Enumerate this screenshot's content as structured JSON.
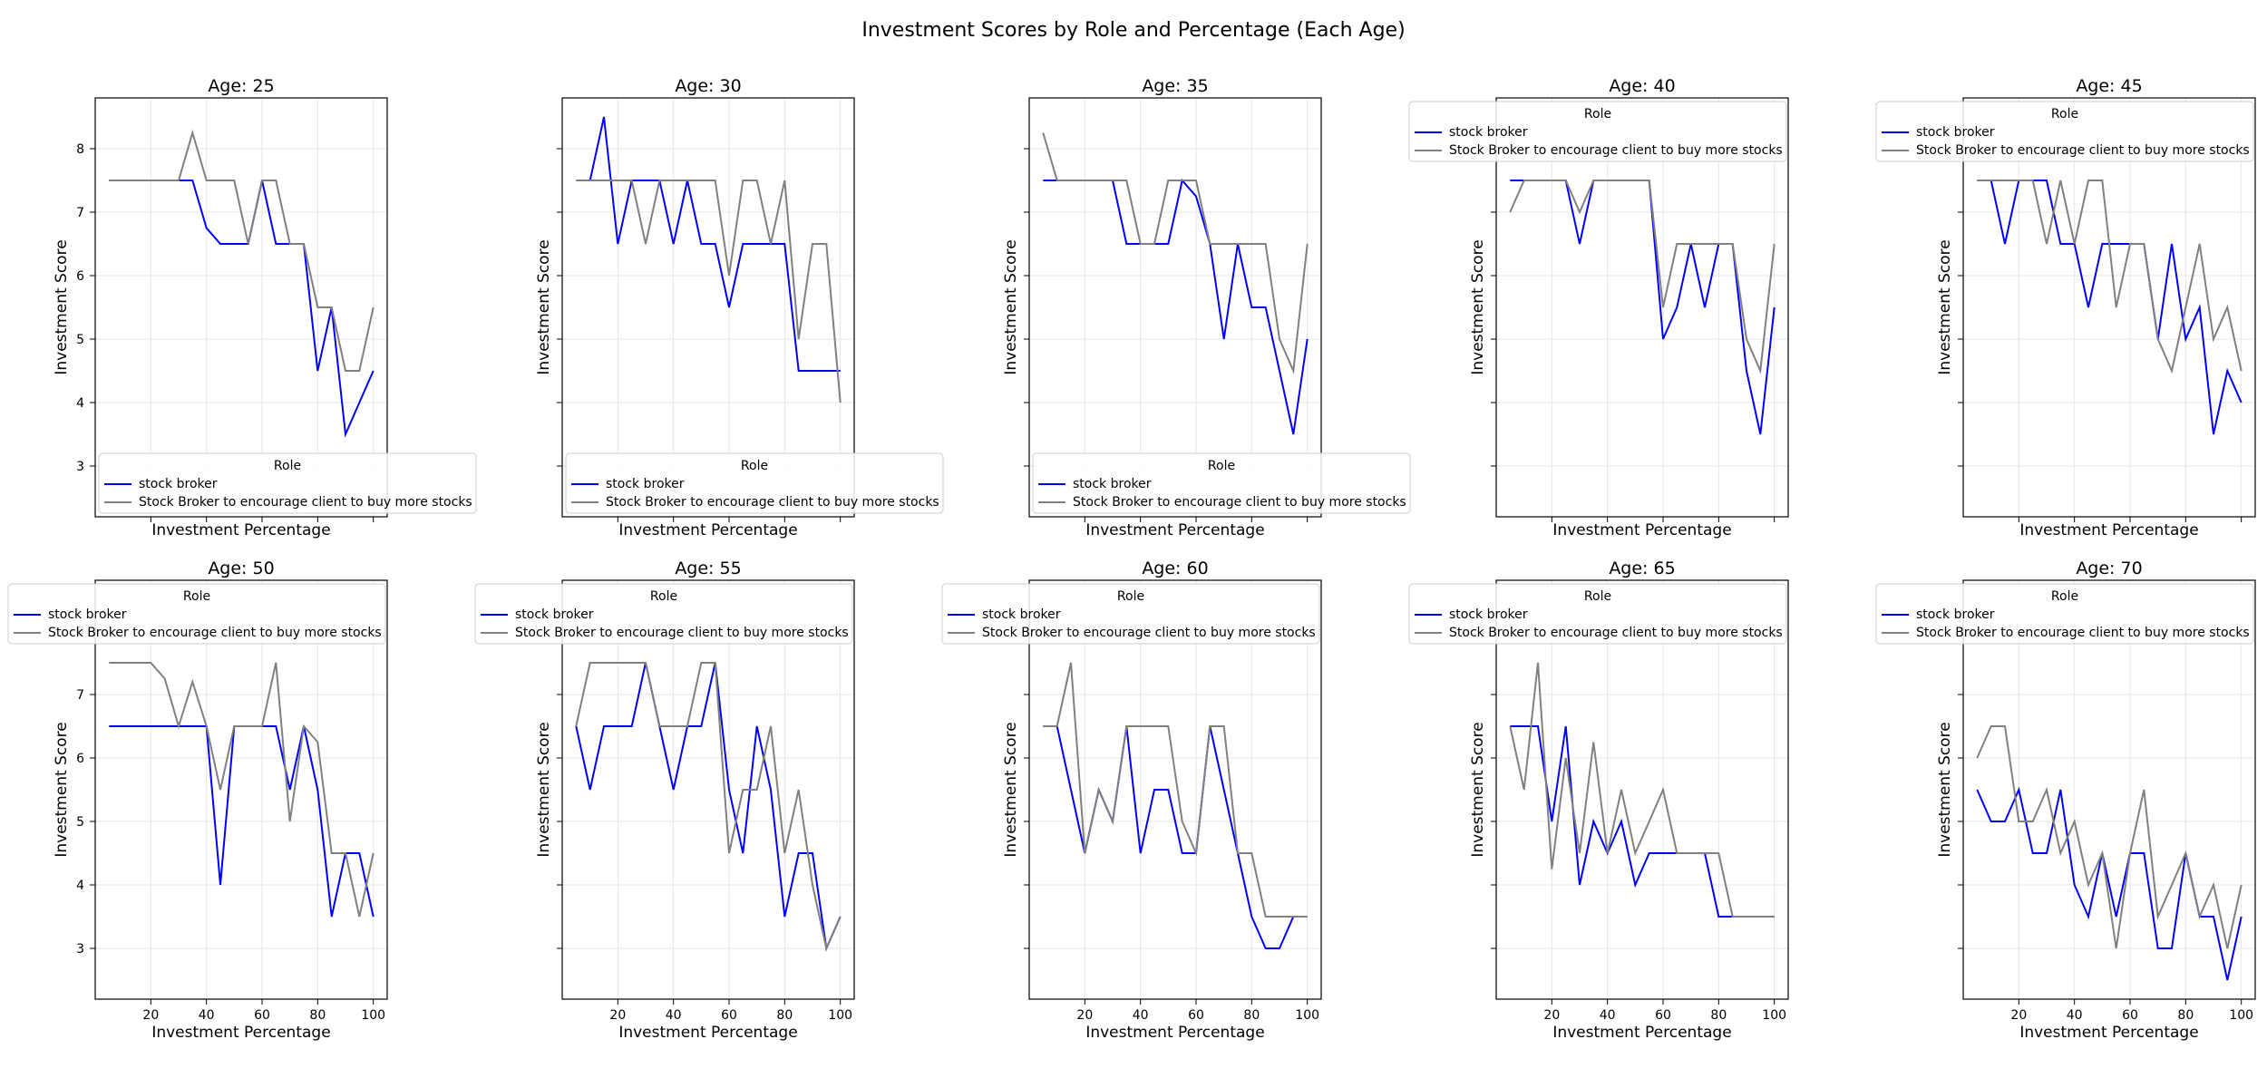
{
  "figure": {
    "title": "Investment Scores by Role and Percentage (Each Age)"
  },
  "shared": {
    "xlabel": "Investment Percentage",
    "ylabel": "Investment Score",
    "legend_title": "Role",
    "series_names": [
      "stock broker",
      "Stock Broker to encourage client to buy more stocks"
    ],
    "series_colors": [
      "#0000ff",
      "#808080"
    ],
    "x": [
      5,
      10,
      15,
      20,
      25,
      30,
      35,
      40,
      45,
      50,
      55,
      60,
      65,
      70,
      75,
      80,
      85,
      90,
      95,
      100
    ],
    "xticks": [
      20,
      40,
      60,
      80,
      100
    ],
    "xlim": [
      0,
      105
    ],
    "ylim": [
      2.2,
      8.8
    ],
    "yticks": [
      3,
      4,
      5,
      6,
      7,
      8
    ],
    "grid": true
  },
  "chart_data": [
    {
      "type": "line",
      "title": "Age: 25",
      "legend": "bottom-left",
      "series": [
        {
          "name": "stock broker",
          "values": [
            7.5,
            7.5,
            7.5,
            7.5,
            7.5,
            7.5,
            7.5,
            6.75,
            6.5,
            6.5,
            6.5,
            7.5,
            6.5,
            6.5,
            6.5,
            4.5,
            5.5,
            3.5,
            4.0,
            4.5
          ]
        },
        {
          "name": "Stock Broker to encourage client to buy more stocks",
          "values": [
            7.5,
            7.5,
            7.5,
            7.5,
            7.5,
            7.5,
            8.25,
            7.5,
            7.5,
            7.5,
            6.5,
            7.5,
            7.5,
            6.5,
            6.5,
            5.5,
            5.5,
            4.5,
            4.5,
            5.5
          ]
        }
      ]
    },
    {
      "type": "line",
      "title": "Age: 30",
      "legend": "bottom-left",
      "series": [
        {
          "name": "stock broker",
          "values": [
            7.5,
            7.5,
            8.5,
            6.5,
            7.5,
            7.5,
            7.5,
            6.5,
            7.5,
            6.5,
            6.5,
            5.5,
            6.5,
            6.5,
            6.5,
            6.5,
            4.5,
            4.5,
            4.5,
            4.5
          ]
        },
        {
          "name": "Stock Broker to encourage client to buy more stocks",
          "values": [
            7.5,
            7.5,
            7.5,
            7.5,
            7.5,
            6.5,
            7.5,
            7.5,
            7.5,
            7.5,
            7.5,
            6.0,
            7.5,
            7.5,
            6.5,
            7.5,
            5.0,
            6.5,
            6.5,
            4.0
          ]
        }
      ]
    },
    {
      "type": "line",
      "title": "Age: 35",
      "legend": "bottom-left",
      "series": [
        {
          "name": "stock broker",
          "values": [
            7.5,
            7.5,
            7.5,
            7.5,
            7.5,
            7.5,
            6.5,
            6.5,
            6.5,
            6.5,
            7.5,
            7.25,
            6.5,
            5.0,
            6.5,
            5.5,
            5.5,
            4.5,
            3.5,
            5.0
          ]
        },
        {
          "name": "Stock Broker to encourage client to buy more stocks",
          "values": [
            8.25,
            7.5,
            7.5,
            7.5,
            7.5,
            7.5,
            7.5,
            6.5,
            6.5,
            7.5,
            7.5,
            7.5,
            6.5,
            6.5,
            6.5,
            6.5,
            6.5,
            5.0,
            4.5,
            6.5
          ]
        }
      ]
    },
    {
      "type": "line",
      "title": "Age: 40",
      "legend": "top-left",
      "series": [
        {
          "name": "stock broker",
          "values": [
            7.5,
            7.5,
            7.5,
            7.5,
            7.5,
            6.5,
            7.5,
            7.5,
            7.5,
            7.5,
            7.5,
            5.0,
            5.5,
            6.5,
            5.5,
            6.5,
            6.5,
            4.5,
            3.5,
            5.5
          ]
        },
        {
          "name": "Stock Broker to encourage client to buy more stocks",
          "values": [
            7.0,
            7.5,
            7.5,
            7.5,
            7.5,
            7.0,
            7.5,
            7.5,
            7.5,
            7.5,
            7.5,
            5.5,
            6.5,
            6.5,
            6.5,
            6.5,
            6.5,
            5.0,
            4.5,
            6.5
          ]
        }
      ]
    },
    {
      "type": "line",
      "title": "Age: 45",
      "legend": "top-left",
      "series": [
        {
          "name": "stock broker",
          "values": [
            7.5,
            7.5,
            6.5,
            7.5,
            7.5,
            7.5,
            6.5,
            6.5,
            5.5,
            6.5,
            6.5,
            6.5,
            6.5,
            5.0,
            6.5,
            5.0,
            5.5,
            3.5,
            4.5,
            4.0
          ]
        },
        {
          "name": "Stock Broker to encourage client to buy more stocks",
          "values": [
            7.5,
            7.5,
            7.5,
            7.5,
            7.5,
            6.5,
            7.5,
            6.5,
            7.5,
            7.5,
            5.5,
            6.5,
            6.5,
            5.0,
            4.5,
            5.5,
            6.5,
            5.0,
            5.5,
            4.5
          ]
        }
      ]
    },
    {
      "type": "line",
      "title": "Age: 50",
      "legend": "top-left",
      "series": [
        {
          "name": "stock broker",
          "values": [
            6.5,
            6.5,
            6.5,
            6.5,
            6.5,
            6.5,
            6.5,
            6.5,
            4.0,
            6.5,
            6.5,
            6.5,
            6.5,
            5.5,
            6.5,
            5.5,
            3.5,
            4.5,
            4.5,
            3.5
          ]
        },
        {
          "name": "Stock Broker to encourage client to buy more stocks",
          "values": [
            7.5,
            7.5,
            7.5,
            7.5,
            7.25,
            6.5,
            7.2,
            6.5,
            5.5,
            6.5,
            6.5,
            6.5,
            7.5,
            5.0,
            6.5,
            6.25,
            4.5,
            4.5,
            3.5,
            4.5
          ]
        }
      ]
    },
    {
      "type": "line",
      "title": "Age: 55",
      "legend": "top-left",
      "series": [
        {
          "name": "stock broker",
          "values": [
            6.5,
            5.5,
            6.5,
            6.5,
            6.5,
            7.5,
            6.5,
            5.5,
            6.5,
            6.5,
            7.5,
            5.5,
            4.5,
            6.5,
            5.5,
            3.5,
            4.5,
            4.5,
            3.0,
            3.5
          ]
        },
        {
          "name": "Stock Broker to encourage client to buy more stocks",
          "values": [
            6.5,
            7.5,
            7.5,
            7.5,
            7.5,
            7.5,
            6.5,
            6.5,
            6.5,
            7.5,
            7.5,
            4.5,
            5.5,
            5.5,
            6.5,
            4.5,
            5.5,
            4.0,
            3.0,
            3.5
          ]
        }
      ]
    },
    {
      "type": "line",
      "title": "Age: 60",
      "legend": "top-left",
      "series": [
        {
          "name": "stock broker",
          "values": [
            6.5,
            6.5,
            5.5,
            4.5,
            5.5,
            5.0,
            6.5,
            4.5,
            5.5,
            5.5,
            4.5,
            4.5,
            6.5,
            5.5,
            4.5,
            3.5,
            3.0,
            3.0,
            3.5,
            3.5
          ]
        },
        {
          "name": "Stock Broker to encourage client to buy more stocks",
          "values": [
            6.5,
            6.5,
            7.5,
            4.5,
            5.5,
            5.0,
            6.5,
            6.5,
            6.5,
            6.5,
            5.0,
            4.5,
            6.5,
            6.5,
            4.5,
            4.5,
            3.5,
            3.5,
            3.5,
            3.5
          ]
        }
      ]
    },
    {
      "type": "line",
      "title": "Age: 65",
      "legend": "top-left",
      "series": [
        {
          "name": "stock broker",
          "values": [
            6.5,
            6.5,
            6.5,
            5.0,
            6.5,
            4.0,
            5.0,
            4.5,
            5.0,
            4.0,
            4.5,
            4.5,
            4.5,
            4.5,
            4.5,
            3.5,
            3.5,
            3.5,
            3.5,
            3.5
          ]
        },
        {
          "name": "Stock Broker to encourage client to buy more stocks",
          "values": [
            6.5,
            5.5,
            7.5,
            4.25,
            6.0,
            4.5,
            6.25,
            4.5,
            5.5,
            4.5,
            5.0,
            5.5,
            4.5,
            4.5,
            4.5,
            4.5,
            3.5,
            3.5,
            3.5,
            3.5
          ]
        }
      ]
    },
    {
      "type": "line",
      "title": "Age: 70",
      "legend": "top-left",
      "series": [
        {
          "name": "stock broker",
          "values": [
            5.5,
            5.0,
            5.0,
            5.5,
            4.5,
            4.5,
            5.5,
            4.0,
            3.5,
            4.5,
            3.5,
            4.5,
            4.5,
            3.0,
            3.0,
            4.5,
            3.5,
            3.5,
            2.5,
            3.5
          ]
        },
        {
          "name": "Stock Broker to encourage client to buy more stocks",
          "values": [
            6.0,
            6.5,
            6.5,
            5.0,
            5.0,
            5.5,
            4.5,
            5.0,
            4.0,
            4.5,
            3.0,
            4.5,
            5.5,
            3.5,
            4.0,
            4.5,
            3.5,
            4.0,
            3.0,
            4.0
          ]
        }
      ]
    }
  ]
}
